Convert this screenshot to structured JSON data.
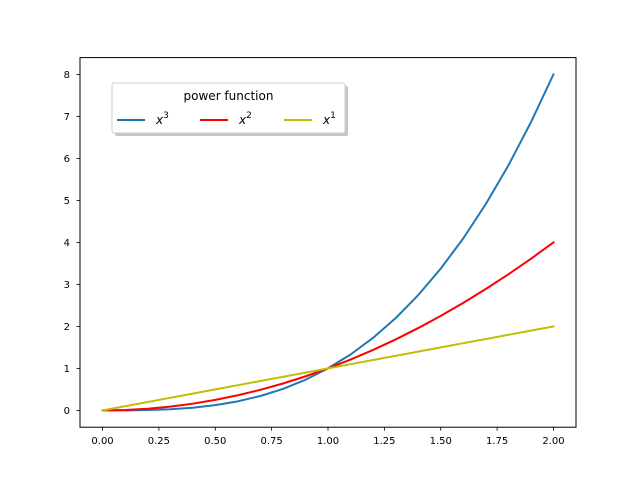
{
  "chart_data": {
    "type": "line",
    "title": "",
    "xlabel": "",
    "ylabel": "",
    "xlim": [
      -0.1,
      2.1
    ],
    "ylim": [
      -0.4,
      8.4
    ],
    "xticks": [
      0.0,
      0.25,
      0.5,
      0.75,
      1.0,
      1.25,
      1.5,
      1.75,
      2.0
    ],
    "xtick_labels": [
      "0.00",
      "0.25",
      "0.50",
      "0.75",
      "1.00",
      "1.25",
      "1.50",
      "1.75",
      "2.00"
    ],
    "yticks": [
      0,
      1,
      2,
      3,
      4,
      5,
      6,
      7,
      8
    ],
    "ytick_labels": [
      "0",
      "1",
      "2",
      "3",
      "4",
      "5",
      "6",
      "7",
      "8"
    ],
    "grid": false,
    "x": [
      0.0,
      0.1,
      0.2,
      0.3,
      0.4,
      0.5,
      0.6,
      0.7,
      0.8,
      0.9,
      1.0,
      1.1,
      1.2,
      1.3,
      1.4,
      1.5,
      1.6,
      1.7,
      1.8,
      1.9,
      2.0
    ],
    "series": [
      {
        "name": "x^3",
        "base": "x",
        "exponent": "3",
        "color": "#1f77b4",
        "values": [
          0.0,
          0.001,
          0.008,
          0.027,
          0.064,
          0.125,
          0.216,
          0.343,
          0.512,
          0.729,
          1.0,
          1.331,
          1.728,
          2.197,
          2.744,
          3.375,
          4.096,
          4.913,
          5.832,
          6.859,
          8.0
        ]
      },
      {
        "name": "x^2",
        "base": "x",
        "exponent": "2",
        "color": "#ff0000",
        "values": [
          0.0,
          0.01,
          0.04,
          0.09,
          0.16,
          0.25,
          0.36,
          0.49,
          0.64,
          0.81,
          1.0,
          1.21,
          1.44,
          1.69,
          1.96,
          2.25,
          2.56,
          2.89,
          3.24,
          3.61,
          4.0
        ]
      },
      {
        "name": "x^1",
        "base": "x",
        "exponent": "1",
        "color": "#bfbf00",
        "values": [
          0.0,
          0.1,
          0.2,
          0.3,
          0.4,
          0.5,
          0.6,
          0.7,
          0.8,
          0.9,
          1.0,
          1.1,
          1.2,
          1.3,
          1.4,
          1.5,
          1.6,
          1.7,
          1.8,
          1.9,
          2.0
        ]
      }
    ],
    "legend": {
      "title": "power function",
      "placement": "upper-left",
      "columns": 3,
      "shadow": true
    }
  }
}
